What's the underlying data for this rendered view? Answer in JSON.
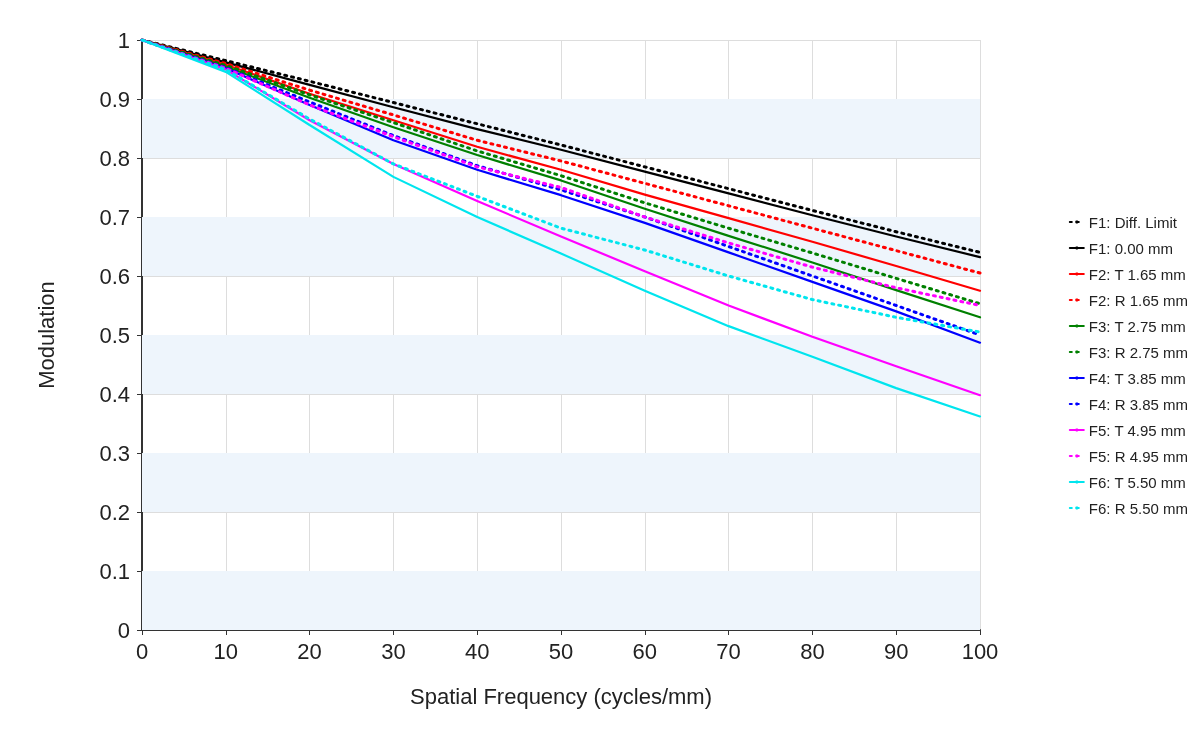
{
  "chart_data": {
    "type": "line",
    "xlabel": "Spatial Frequency (cycles/mm)",
    "ylabel": "Modulation",
    "x": [
      0,
      10,
      20,
      30,
      40,
      50,
      60,
      70,
      80,
      90,
      100
    ],
    "xlim": [
      0,
      100
    ],
    "xticks": [
      0,
      10,
      20,
      30,
      40,
      50,
      60,
      70,
      80,
      90,
      100
    ],
    "ylim": [
      0,
      1
    ],
    "yticks": [
      0,
      0.1,
      0.2,
      0.3,
      0.4,
      0.5,
      0.6,
      0.7,
      0.8,
      0.9,
      1
    ],
    "grid": true,
    "legend": "right",
    "marker": "none",
    "bands": [
      {
        "axis": "y",
        "from": 0.8,
        "to": 0.9,
        "color": "#eef5fc"
      },
      {
        "axis": "y",
        "from": 0.6,
        "to": 0.7,
        "color": "#eef5fc"
      },
      {
        "axis": "y",
        "from": 0.4,
        "to": 0.5,
        "color": "#eef5fc"
      },
      {
        "axis": "y",
        "from": 0.2,
        "to": 0.3,
        "color": "#eef5fc"
      },
      {
        "axis": "y",
        "from": 0,
        "to": 0.1,
        "color": "#eef5fc"
      }
    ],
    "series": [
      {
        "name": "F1: Diff. Limit",
        "color": "#000000",
        "line_style": "dotted",
        "values": [
          1,
          0.965,
          0.93,
          0.894,
          0.858,
          0.822,
          0.785,
          0.748,
          0.711,
          0.675,
          0.64
        ]
      },
      {
        "name": "F1: 0.00 mm",
        "color": "#000000",
        "line_style": "solid",
        "values": [
          1,
          0.962,
          0.924,
          0.886,
          0.849,
          0.814,
          0.777,
          0.74,
          0.703,
          0.667,
          0.632
        ]
      },
      {
        "name": "F2: T 1.65 mm",
        "color": "#ff0000",
        "line_style": "solid",
        "values": [
          1,
          0.958,
          0.909,
          0.864,
          0.819,
          0.78,
          0.738,
          0.698,
          0.658,
          0.617,
          0.575
        ]
      },
      {
        "name": "F2: R 1.65 mm",
        "color": "#ff0000",
        "line_style": "dotted",
        "values": [
          1,
          0.96,
          0.915,
          0.873,
          0.83,
          0.795,
          0.757,
          0.719,
          0.681,
          0.643,
          0.605
        ]
      },
      {
        "name": "F3: T 2.75 mm",
        "color": "#008000",
        "line_style": "solid",
        "values": [
          1,
          0.955,
          0.902,
          0.852,
          0.805,
          0.762,
          0.714,
          0.668,
          0.623,
          0.576,
          0.53
        ]
      },
      {
        "name": "F3: R 2.75 mm",
        "color": "#008000",
        "line_style": "dotted",
        "values": [
          1,
          0.957,
          0.907,
          0.86,
          0.812,
          0.77,
          0.724,
          0.681,
          0.639,
          0.596,
          0.553
        ]
      },
      {
        "name": "F4: T 3.85 mm",
        "color": "#0000ff",
        "line_style": "solid",
        "values": [
          1,
          0.952,
          0.89,
          0.83,
          0.78,
          0.737,
          0.69,
          0.64,
          0.59,
          0.54,
          0.487
        ]
      },
      {
        "name": "F4: R 3.85 mm",
        "color": "#0000ff",
        "line_style": "dotted",
        "values": [
          1,
          0.953,
          0.895,
          0.838,
          0.787,
          0.746,
          0.7,
          0.65,
          0.6,
          0.55,
          0.5
        ]
      },
      {
        "name": "F5: T 4.95 mm",
        "color": "#ff00ff",
        "line_style": "solid",
        "values": [
          1,
          0.95,
          0.864,
          0.79,
          0.727,
          0.667,
          0.608,
          0.55,
          0.497,
          0.447,
          0.398
        ]
      },
      {
        "name": "F5: R 4.95 mm",
        "color": "#ff00ff",
        "line_style": "dotted",
        "values": [
          1,
          0.952,
          0.89,
          0.836,
          0.785,
          0.75,
          0.7,
          0.656,
          0.615,
          0.58,
          0.55
        ]
      },
      {
        "name": "F6: T 5.50 mm",
        "color": "#00e5ee",
        "line_style": "solid",
        "values": [
          1,
          0.946,
          0.856,
          0.768,
          0.7,
          0.638,
          0.575,
          0.515,
          0.463,
          0.41,
          0.362
        ]
      },
      {
        "name": "F6: R 5.50 mm",
        "color": "#00e5ee",
        "line_style": "dotted",
        "values": [
          1,
          0.95,
          0.866,
          0.79,
          0.735,
          0.681,
          0.644,
          0.6,
          0.56,
          0.53,
          0.505
        ]
      }
    ]
  }
}
